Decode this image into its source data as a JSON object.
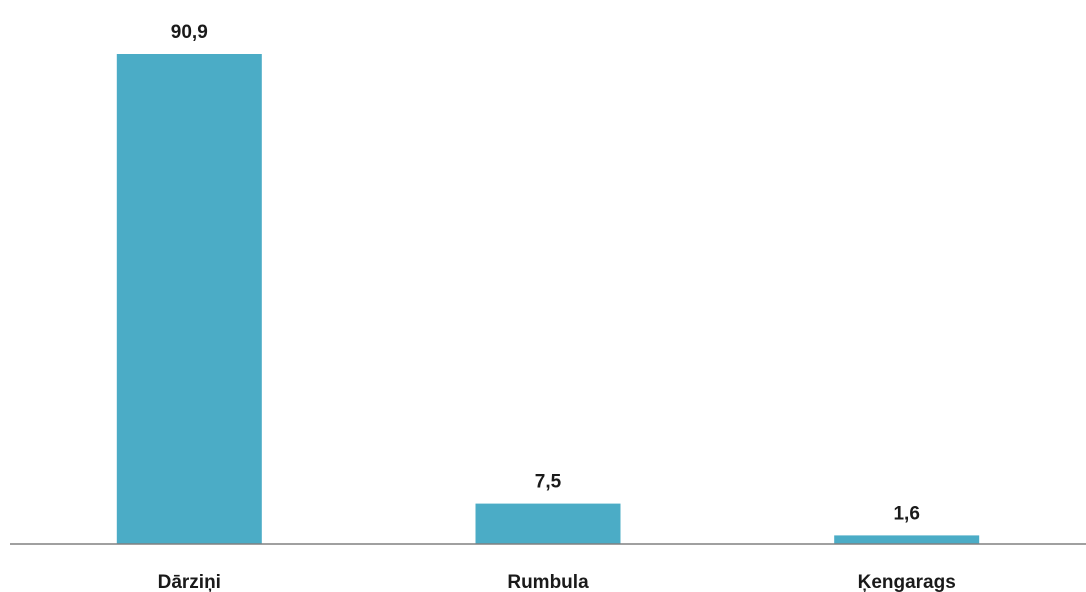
{
  "chart_data": {
    "type": "bar",
    "categories": [
      "Dārziņi",
      "Rumbula",
      "Ķengarags"
    ],
    "values": [
      90.9,
      7.5,
      1.6
    ],
    "value_labels": [
      "90,9",
      "7,5",
      "1,6"
    ],
    "ylim": [
      0,
      90.9
    ],
    "grid": false,
    "legend": "none"
  },
  "colors": {
    "bar": "#4bacc6",
    "axis": "#808080",
    "text": "#1a1a1a"
  }
}
